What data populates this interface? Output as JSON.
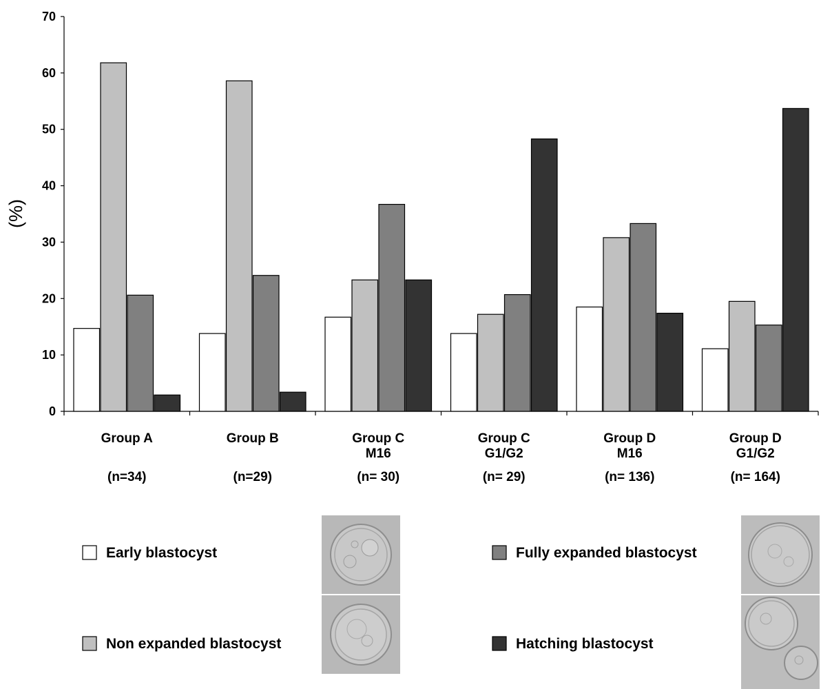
{
  "chart_data": {
    "type": "bar",
    "title": "",
    "xlabel": "",
    "ylabel": "(%)",
    "ylim": [
      0,
      70
    ],
    "yticks": [
      0,
      10,
      20,
      30,
      40,
      50,
      60,
      70
    ],
    "grid": false,
    "legend_position": "bottom",
    "categories": [
      {
        "lines": [
          "Group A",
          ""
        ],
        "n": "(n=34)"
      },
      {
        "lines": [
          "Group B",
          ""
        ],
        "n": "(n=29)"
      },
      {
        "lines": [
          "Group C",
          "M16"
        ],
        "n": "(n= 30)"
      },
      {
        "lines": [
          "Group C",
          "G1/G2"
        ],
        "n": "(n= 29)"
      },
      {
        "lines": [
          "Group D",
          "M16"
        ],
        "n": "(n= 136)"
      },
      {
        "lines": [
          "Group D",
          "G1/G2"
        ],
        "n": "(n= 164)"
      }
    ],
    "series": [
      {
        "name": "Early blastocyst",
        "color": "#ffffff",
        "values": [
          14.7,
          13.8,
          16.7,
          13.8,
          18.5,
          11.1
        ]
      },
      {
        "name": "Non expanded blastocyst",
        "color": "#c0c0c0",
        "values": [
          61.8,
          58.6,
          23.3,
          17.2,
          30.8,
          19.5
        ]
      },
      {
        "name": "Fully expanded blastocyst",
        "color": "#808080",
        "values": [
          20.6,
          24.1,
          36.7,
          20.7,
          33.3,
          15.3
        ]
      },
      {
        "name": "Hatching blastocyst",
        "color": "#333333",
        "values": [
          2.9,
          3.4,
          23.3,
          48.3,
          17.4,
          53.7
        ]
      }
    ]
  }
}
